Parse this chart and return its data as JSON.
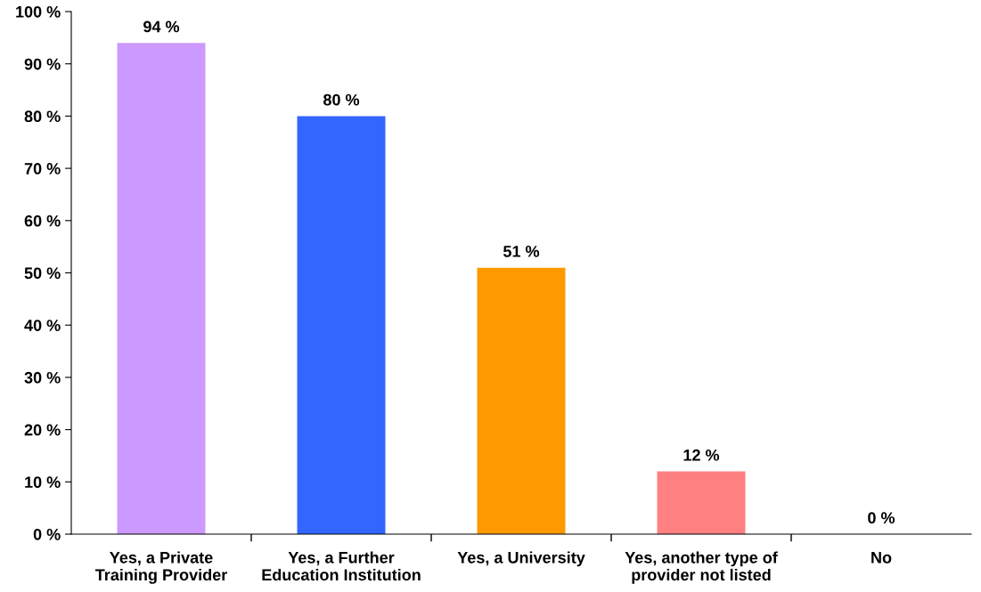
{
  "chart_data": {
    "type": "bar",
    "categories": [
      "Yes, a Private\nTraining Provider",
      "Yes, a Further\nEducation Institution",
      "Yes, a University",
      "Yes, another type of\nprovider not listed",
      "No"
    ],
    "values": [
      94,
      80,
      51,
      12,
      0
    ],
    "colors": [
      "#cc99ff",
      "#3366ff",
      "#ff9900",
      "#ff8080",
      "#993366"
    ],
    "value_labels": [
      "94 %",
      "80 %",
      "51 %",
      "12 %",
      "0 %"
    ],
    "ylim": [
      0,
      100
    ],
    "yticks": [
      {
        "value": 0,
        "label": "0 %"
      },
      {
        "value": 10,
        "label": "10 %"
      },
      {
        "value": 20,
        "label": "20 %"
      },
      {
        "value": 30,
        "label": "30 %"
      },
      {
        "value": 40,
        "label": "40 %"
      },
      {
        "value": 50,
        "label": "50 %"
      },
      {
        "value": 60,
        "label": "60 %"
      },
      {
        "value": 70,
        "label": "70 %"
      },
      {
        "value": 80,
        "label": "80 %"
      },
      {
        "value": 90,
        "label": "90 %"
      },
      {
        "value": 100,
        "label": "100 %"
      }
    ],
    "grid": false,
    "legend": false
  }
}
